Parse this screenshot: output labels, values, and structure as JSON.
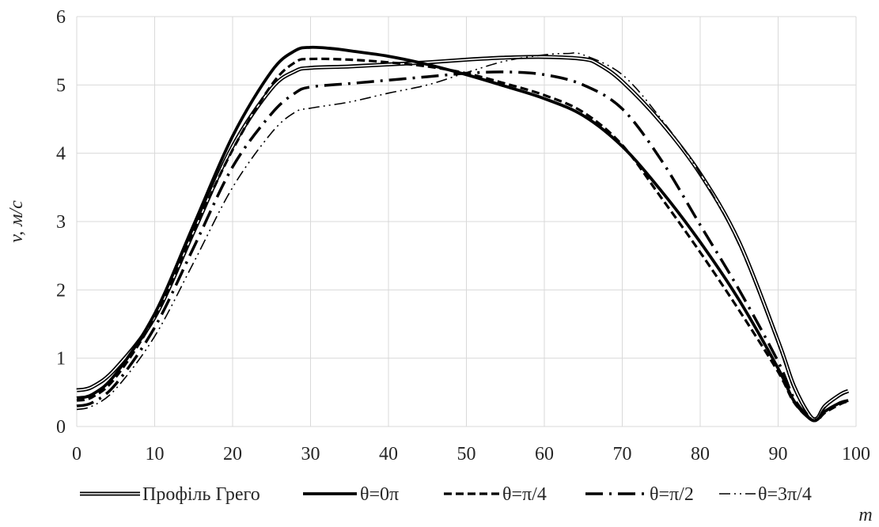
{
  "chart_data": {
    "type": "line",
    "xlabel": "m",
    "ylabel": "v, м/с",
    "xlim": [
      0,
      100
    ],
    "ylim": [
      0,
      6
    ],
    "xticks": [
      0,
      10,
      20,
      30,
      40,
      50,
      60,
      70,
      80,
      90,
      100
    ],
    "yticks": [
      0,
      1,
      2,
      3,
      4,
      5,
      6
    ],
    "grid": true,
    "legend_position": "bottom",
    "series": [
      {
        "name": "Профіль Грего",
        "style": "double",
        "color": "#000000",
        "x": [
          0,
          2,
          5,
          10,
          15,
          20,
          25,
          28,
          30,
          35,
          40,
          45,
          50,
          55,
          60,
          65,
          67,
          70,
          75,
          80,
          85,
          90,
          92,
          94,
          95,
          96,
          98,
          99
        ],
        "y": [
          0.53,
          0.58,
          0.85,
          1.6,
          2.85,
          4.1,
          4.95,
          5.2,
          5.25,
          5.27,
          5.3,
          5.33,
          5.37,
          5.4,
          5.41,
          5.38,
          5.3,
          5.05,
          4.45,
          3.7,
          2.7,
          1.25,
          0.6,
          0.17,
          0.12,
          0.3,
          0.47,
          0.52
        ]
      },
      {
        "name": "θ=0π",
        "style": "solid-thick",
        "color": "#000000",
        "x": [
          0,
          2,
          5,
          10,
          15,
          20,
          25,
          28,
          30,
          33,
          35,
          40,
          45,
          50,
          55,
          60,
          65,
          70,
          75,
          80,
          85,
          90,
          92,
          94,
          95,
          96,
          98,
          99
        ],
        "y": [
          0.42,
          0.47,
          0.77,
          1.65,
          2.95,
          4.25,
          5.2,
          5.5,
          5.55,
          5.53,
          5.5,
          5.42,
          5.3,
          5.15,
          4.98,
          4.8,
          4.55,
          4.1,
          3.45,
          2.7,
          1.85,
          0.85,
          0.38,
          0.12,
          0.1,
          0.22,
          0.35,
          0.38
        ]
      },
      {
        "name": "θ=π/4",
        "style": "dashed",
        "color": "#000000",
        "x": [
          0,
          2,
          5,
          10,
          15,
          20,
          25,
          28,
          30,
          35,
          40,
          45,
          50,
          55,
          60,
          65,
          70,
          75,
          80,
          85,
          90,
          92,
          94,
          95,
          96,
          98,
          99
        ],
        "y": [
          0.38,
          0.43,
          0.72,
          1.6,
          2.85,
          4.05,
          5.0,
          5.33,
          5.38,
          5.37,
          5.33,
          5.27,
          5.17,
          5.02,
          4.85,
          4.6,
          4.12,
          3.35,
          2.55,
          1.7,
          0.8,
          0.36,
          0.12,
          0.09,
          0.2,
          0.33,
          0.37
        ]
      },
      {
        "name": "θ=π/2",
        "style": "long-dash-dot",
        "color": "#000000",
        "x": [
          0,
          2,
          5,
          10,
          15,
          20,
          25,
          28,
          30,
          35,
          40,
          45,
          50,
          55,
          60,
          65,
          70,
          75,
          80,
          85,
          90,
          92,
          94,
          95,
          96,
          98,
          99
        ],
        "y": [
          0.3,
          0.35,
          0.62,
          1.45,
          2.62,
          3.8,
          4.58,
          4.88,
          4.97,
          5.02,
          5.07,
          5.12,
          5.17,
          5.19,
          5.15,
          5.0,
          4.65,
          3.9,
          2.95,
          2.0,
          0.95,
          0.42,
          0.13,
          0.1,
          0.22,
          0.35,
          0.38
        ]
      },
      {
        "name": "θ=3π/4",
        "style": "dash-dot-dot",
        "color": "#000000",
        "x": [
          0,
          2,
          5,
          10,
          15,
          20,
          25,
          28,
          30,
          35,
          40,
          45,
          50,
          55,
          60,
          63,
          65,
          70,
          75,
          80,
          85,
          90,
          92,
          94,
          95,
          96,
          98,
          99
        ],
        "y": [
          0.25,
          0.3,
          0.55,
          1.32,
          2.4,
          3.5,
          4.3,
          4.6,
          4.66,
          4.75,
          4.88,
          5.0,
          5.18,
          5.35,
          5.44,
          5.46,
          5.44,
          5.15,
          4.5,
          3.7,
          2.65,
          1.2,
          0.55,
          0.15,
          0.12,
          0.28,
          0.45,
          0.5
        ]
      }
    ]
  }
}
